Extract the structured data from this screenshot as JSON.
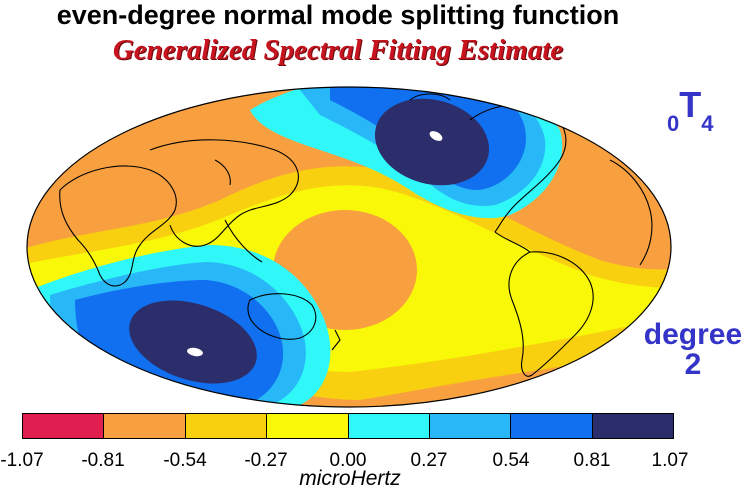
{
  "title": "even-degree normal mode splitting function",
  "subtitle": "Generalized Spectral Fitting Estimate",
  "mode_label": {
    "prefix": "0",
    "letter": "T",
    "suffix": "4"
  },
  "degree_label": {
    "word": "degree",
    "value": "2"
  },
  "colorbar": {
    "unit": "microHertz",
    "ticks": [
      "-1.07",
      "-0.81",
      "-0.54",
      "-0.27",
      "0.00",
      "0.27",
      "0.54",
      "0.81",
      "1.07"
    ],
    "colors": [
      "#e01e50",
      "#f8a040",
      "#f8d010",
      "#f8f808",
      "#30f8f8",
      "#28b8f8",
      "#1070f0",
      "#2c2e6c"
    ]
  },
  "map_colors": {
    "orange": "#f8a040",
    "gold": "#f8d010",
    "yellow": "#f8f808",
    "cyan": "#30f8f8",
    "lightblue": "#28b8f8",
    "blue": "#1070f0",
    "navy": "#2c2e6c",
    "white": "#ffffff"
  }
}
